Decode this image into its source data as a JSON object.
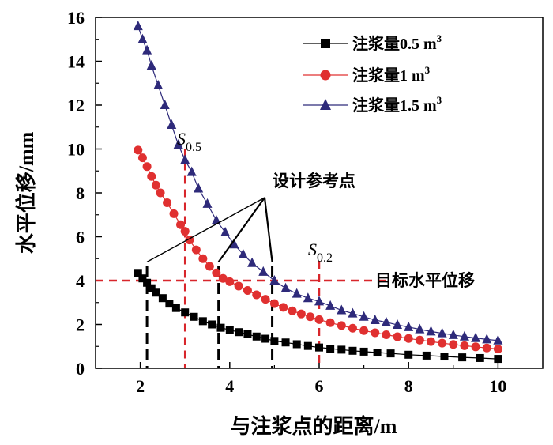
{
  "chart_data": {
    "type": "line",
    "title": "",
    "xlabel": "与注浆点的距离/m",
    "ylabel": "水平位移/mm",
    "xlim": [
      1,
      11
    ],
    "ylim": [
      0,
      16
    ],
    "x_ticks": [
      2,
      4,
      6,
      8,
      10
    ],
    "y_ticks": [
      0,
      2,
      4,
      6,
      8,
      10,
      12,
      14,
      16
    ],
    "legend_position": "top-right",
    "series": [
      {
        "name": "注浆量0.5 m³",
        "label_main": "注浆量0.5 m",
        "label_sup": "3",
        "color": "#000000",
        "marker": "square",
        "x": [
          1.95,
          2.05,
          2.15,
          2.25,
          2.35,
          2.5,
          2.65,
          2.8,
          3.0,
          3.2,
          3.4,
          3.6,
          3.8,
          4.0,
          4.2,
          4.4,
          4.6,
          4.8,
          5.0,
          5.25,
          5.5,
          5.75,
          6.0,
          6.25,
          6.5,
          6.75,
          7.0,
          7.3,
          7.6,
          8.0,
          8.4,
          8.8,
          9.2,
          9.6,
          10.0
        ],
        "y": [
          4.35,
          4.1,
          3.9,
          3.65,
          3.45,
          3.2,
          2.95,
          2.75,
          2.55,
          2.35,
          2.15,
          2.0,
          1.85,
          1.75,
          1.65,
          1.55,
          1.45,
          1.35,
          1.25,
          1.18,
          1.1,
          1.02,
          0.95,
          0.9,
          0.85,
          0.8,
          0.76,
          0.72,
          0.68,
          0.62,
          0.58,
          0.54,
          0.5,
          0.47,
          0.43
        ]
      },
      {
        "name": "注浆量1 m³",
        "label_main": "注浆量1 m",
        "label_sup": "3",
        "color": "#e03030",
        "marker": "circle",
        "x": [
          1.95,
          2.05,
          2.15,
          2.25,
          2.35,
          2.45,
          2.6,
          2.75,
          2.9,
          3.0,
          3.1,
          3.25,
          3.4,
          3.55,
          3.7,
          3.85,
          4.0,
          4.2,
          4.4,
          4.6,
          4.8,
          5.0,
          5.2,
          5.4,
          5.6,
          5.8,
          6.0,
          6.25,
          6.5,
          6.75,
          7.0,
          7.25,
          7.5,
          7.75,
          8.0,
          8.25,
          8.5,
          8.75,
          9.0,
          9.25,
          9.5,
          9.75,
          10.0
        ],
        "y": [
          9.95,
          9.6,
          9.2,
          8.75,
          8.35,
          8.0,
          7.55,
          7.05,
          6.55,
          6.25,
          5.85,
          5.4,
          5.0,
          4.65,
          4.35,
          4.1,
          3.95,
          3.75,
          3.55,
          3.35,
          3.15,
          2.95,
          2.78,
          2.62,
          2.48,
          2.35,
          2.22,
          2.08,
          1.95,
          1.83,
          1.72,
          1.62,
          1.53,
          1.44,
          1.36,
          1.29,
          1.22,
          1.15,
          1.09,
          1.03,
          0.98,
          0.93,
          0.88
        ]
      },
      {
        "name": "注浆量1.5 m³",
        "label_main": "注浆量1.5 m",
        "label_sup": "3",
        "color": "#2e2a7a",
        "marker": "triangle",
        "x": [
          1.95,
          2.05,
          2.15,
          2.25,
          2.4,
          2.55,
          2.7,
          2.85,
          3.0,
          3.15,
          3.3,
          3.5,
          3.7,
          3.9,
          4.1,
          4.3,
          4.5,
          4.75,
          5.0,
          5.25,
          5.5,
          5.75,
          6.0,
          6.25,
          6.5,
          6.75,
          7.0,
          7.25,
          7.5,
          7.75,
          8.0,
          8.25,
          8.5,
          8.75,
          9.0,
          9.25,
          9.5,
          9.75,
          10.0
        ],
        "y": [
          15.6,
          15.0,
          14.5,
          13.8,
          12.9,
          12.0,
          11.1,
          10.2,
          9.5,
          8.95,
          8.2,
          7.5,
          6.75,
          6.2,
          5.65,
          5.2,
          4.8,
          4.4,
          4.0,
          3.65,
          3.4,
          3.2,
          3.05,
          2.85,
          2.65,
          2.5,
          2.35,
          2.2,
          2.1,
          1.98,
          1.88,
          1.78,
          1.68,
          1.6,
          1.52,
          1.45,
          1.38,
          1.32,
          1.27
        ]
      }
    ],
    "annotations": {
      "target_label": "目标水平位移",
      "target_y": 4,
      "design_points_label": "设计参考点",
      "design_points_x": [
        2.15,
        3.75,
        4.95
      ],
      "s05_label": "S",
      "s05_sub": "0.5",
      "s05_x": 3.0,
      "s02_label": "S",
      "s02_sub": "0.2",
      "s02_x": 6.0
    }
  }
}
